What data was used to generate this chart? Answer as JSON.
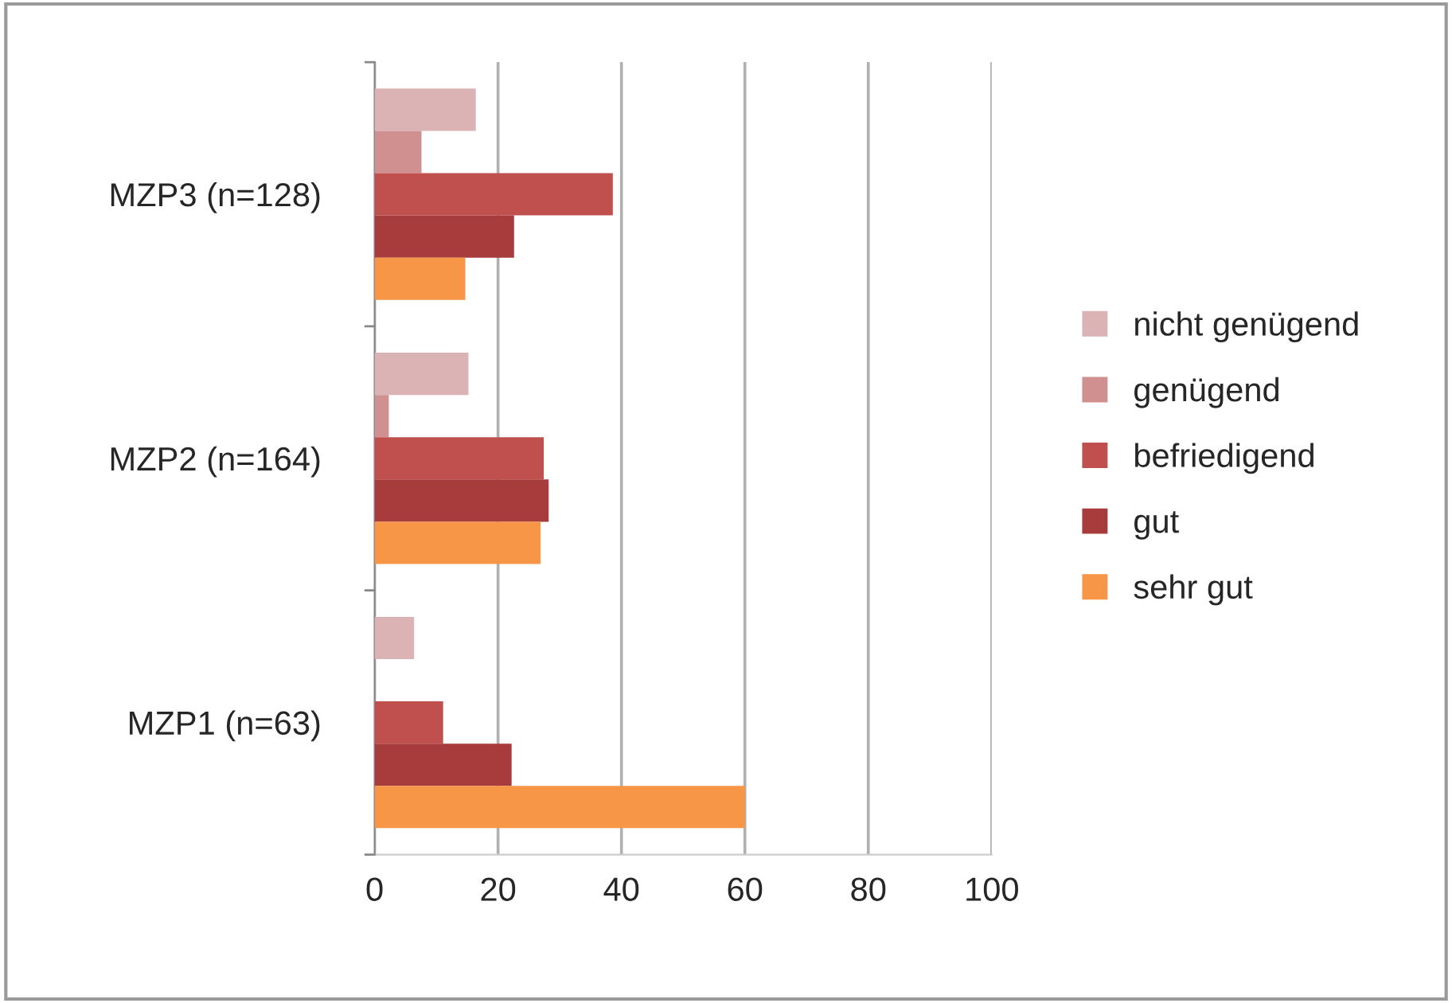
{
  "chart_data": {
    "type": "bar",
    "orientation": "horizontal",
    "categories": [
      "MZP3 (n=128)",
      "MZP2 (n=164)",
      "MZP1 (n=63)"
    ],
    "series": [
      {
        "name": "nicht genügend",
        "color": "#dcb3b5",
        "values": [
          16.4,
          15.2,
          6.4
        ]
      },
      {
        "name": "genügend",
        "color": "#d09090",
        "values": [
          7.6,
          2.3,
          0
        ]
      },
      {
        "name": "befriedigend",
        "color": "#c0504d",
        "values": [
          38.6,
          27.4,
          11.1
        ]
      },
      {
        "name": "gut",
        "color": "#a83b3b",
        "values": [
          22.6,
          28.2,
          22.2
        ]
      },
      {
        "name": "sehr gut",
        "color": "#f79646",
        "values": [
          14.7,
          26.9,
          60
        ]
      }
    ],
    "xlim": [
      0,
      100
    ],
    "xticks": [
      0,
      20,
      40,
      60,
      80,
      100
    ],
    "grid": "x",
    "legend": "right"
  }
}
